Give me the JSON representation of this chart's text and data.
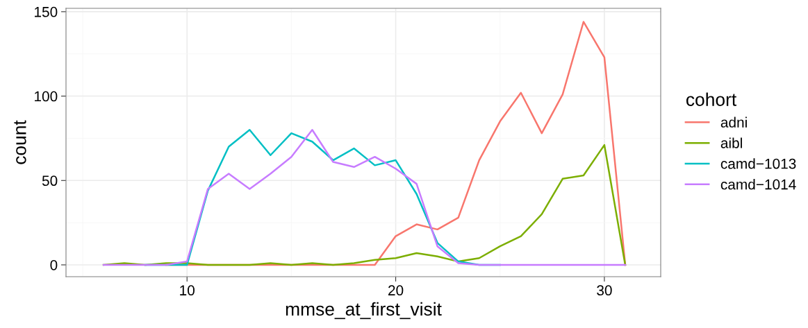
{
  "chart_data": {
    "type": "line",
    "xlabel": "mmse_at_first_visit",
    "ylabel": "count",
    "legend_title": "cohort",
    "legend": "right",
    "grid": true,
    "x": [
      6,
      7,
      8,
      9,
      10,
      11,
      12,
      13,
      14,
      15,
      16,
      17,
      18,
      19,
      20,
      21,
      22,
      23,
      24,
      25,
      26,
      27,
      28,
      29,
      30,
      31
    ],
    "xlim": [
      4.2,
      32.7
    ],
    "xticks": [
      10,
      20,
      30
    ],
    "ylim": [
      -7,
      152
    ],
    "yticks": [
      0,
      50,
      100,
      150
    ],
    "series": [
      {
        "name": "adni",
        "color": "#f8766d",
        "values": [
          null,
          null,
          null,
          0,
          0,
          0,
          0,
          0,
          0,
          0,
          0,
          0,
          0,
          0,
          17,
          24,
          21,
          28,
          62,
          85,
          102,
          78,
          101,
          144,
          123,
          0
        ]
      },
      {
        "name": "aibl",
        "color": "#7cae00",
        "values": [
          0,
          1,
          0,
          1,
          1,
          0,
          0,
          0,
          1,
          0,
          1,
          0,
          1,
          3,
          4,
          7,
          5,
          2,
          4,
          11,
          17,
          30,
          51,
          53,
          71,
          0
        ]
      },
      {
        "name": "camd−1013",
        "color": "#00bfc4",
        "values": [
          null,
          null,
          0,
          0,
          0,
          44,
          70,
          80,
          65,
          78,
          73,
          62,
          69,
          59,
          62,
          42,
          13,
          2,
          0,
          0,
          null,
          null,
          null,
          null,
          null,
          null
        ]
      },
      {
        "name": "camd−1014",
        "color": "#c77cff",
        "values": [
          0,
          0,
          0,
          0,
          2,
          45,
          54,
          45,
          54,
          64,
          80,
          61,
          58,
          64,
          57,
          48,
          11,
          1,
          0,
          0,
          0,
          0,
          0,
          0,
          0,
          0
        ]
      }
    ]
  }
}
